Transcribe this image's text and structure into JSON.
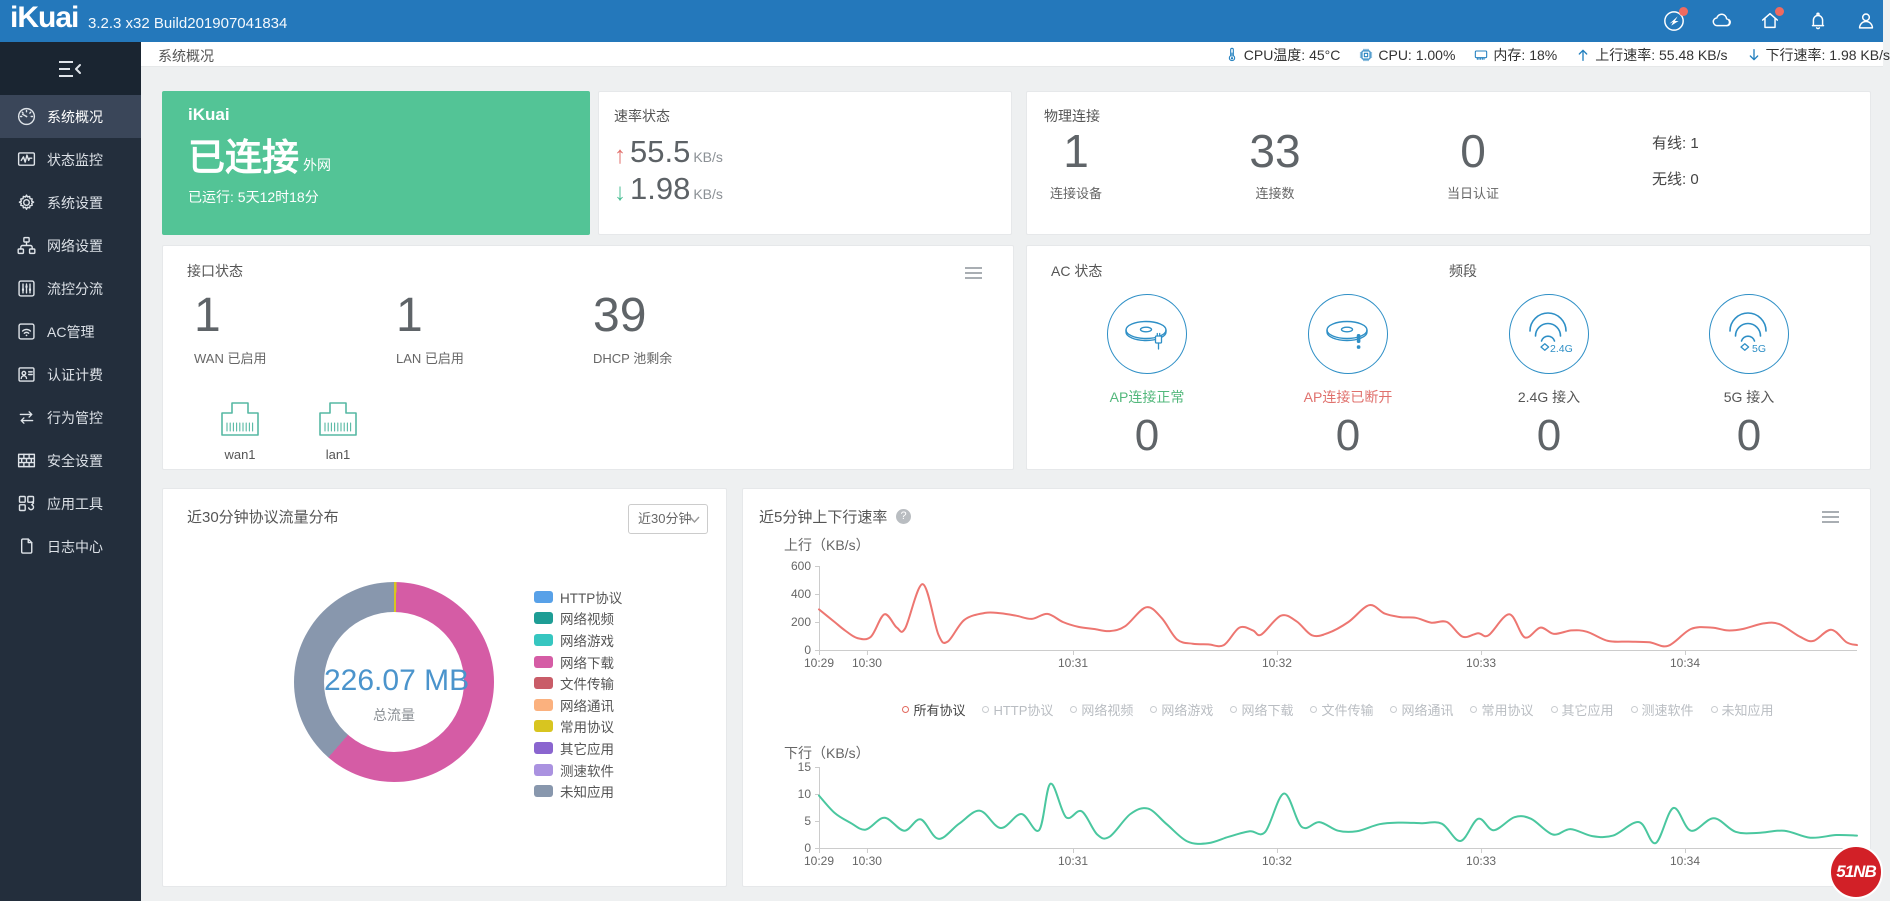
{
  "topbar": {
    "logo": "iKuai",
    "version": "3.2.3 x32 Build201907041834",
    "icons": [
      {
        "icon": "wing-circle",
        "badge": true
      },
      {
        "icon": "cloud",
        "badge": false
      },
      {
        "icon": "home",
        "badge": true
      },
      {
        "icon": "bell",
        "badge": false
      },
      {
        "icon": "user",
        "badge": false
      }
    ]
  },
  "sidebar": {
    "items": [
      {
        "icon": "dashboard",
        "key": "system-overview",
        "label": "系统概况",
        "active": true
      },
      {
        "icon": "monitor",
        "key": "status-monitor",
        "label": "状态监控",
        "active": false
      },
      {
        "icon": "gear",
        "key": "system-settings",
        "label": "系统设置",
        "active": false
      },
      {
        "icon": "network",
        "key": "network-settings",
        "label": "网络设置",
        "active": false
      },
      {
        "icon": "sliders",
        "key": "flow-control",
        "label": "流控分流",
        "active": false
      },
      {
        "icon": "wifi-box",
        "key": "ac-management",
        "label": "AC管理",
        "active": false
      },
      {
        "icon": "id-card",
        "key": "auth-billing",
        "label": "认证计费",
        "active": false
      },
      {
        "icon": "swap",
        "key": "behavior-control",
        "label": "行为管控",
        "active": false
      },
      {
        "icon": "wall",
        "key": "security-settings",
        "label": "安全设置",
        "active": false
      },
      {
        "icon": "apps",
        "key": "app-tools",
        "label": "应用工具",
        "active": false
      },
      {
        "icon": "logs",
        "key": "log-center",
        "label": "日志中心",
        "active": false
      }
    ]
  },
  "breadcrumb": {
    "title": "系统概况"
  },
  "statusbar": {
    "items": [
      {
        "icon": "thermometer",
        "label": "CPU温度: 45°C"
      },
      {
        "icon": "chip",
        "label": "CPU: 1.00%"
      },
      {
        "icon": "memory",
        "label": "内存: 18%"
      },
      {
        "icon": "arrow-up",
        "label": "上行速率: 55.48 KB/s"
      },
      {
        "icon": "arrow-down",
        "label": "下行速率: 1.98 KB/s"
      }
    ]
  },
  "connection_card": {
    "brand": "iKuai",
    "status": "已连接",
    "status_suffix": "外网",
    "uptime": "已运行: 5天12时18分"
  },
  "speed_card": {
    "title": "速率状态",
    "up_value": "55.5",
    "up_unit": "KB/s",
    "down_value": "1.98",
    "down_unit": "KB/s"
  },
  "physical_card": {
    "title": "物理连接",
    "stats": [
      {
        "value": "1",
        "label": "连接设备"
      },
      {
        "value": "33",
        "label": "连接数"
      },
      {
        "value": "0",
        "label": "当日认证"
      }
    ],
    "side": [
      {
        "label": "有线: 1"
      },
      {
        "label": "无线: 0"
      }
    ]
  },
  "interface_card": {
    "title": "接口状态",
    "stats": [
      {
        "value": "1",
        "label": "WAN 已启用"
      },
      {
        "value": "1",
        "label": "LAN 已启用"
      },
      {
        "value": "39",
        "label": "DHCP 池剩余"
      }
    ],
    "ports": [
      {
        "name": "wan1"
      },
      {
        "name": "lan1"
      }
    ]
  },
  "ac_card": {
    "title": "AC 状态",
    "band_title": "频段",
    "items": [
      {
        "icon": "ap-ok",
        "label": "AP连接正常",
        "color": "#53b87c",
        "value": "0"
      },
      {
        "icon": "ap-bad",
        "label": "AP连接已断开",
        "color": "#e0716d",
        "value": "0"
      },
      {
        "icon": "wifi-24",
        "label": "2.4G 接入",
        "color": "#555555",
        "value": "0"
      },
      {
        "icon": "wifi-5",
        "label": "5G 接入",
        "color": "#555555",
        "value": "0"
      }
    ]
  },
  "protocol_card": {
    "title": "近30分钟协议流量分布",
    "dropdown_value": "近30分钟"
  },
  "rate_card": {
    "title": "近5分钟上下行速率",
    "help": "?",
    "legend": [
      {
        "label": "所有协议",
        "active": true
      },
      {
        "label": "HTTP协议",
        "active": false
      },
      {
        "label": "网络视频",
        "active": false
      },
      {
        "label": "网络游戏",
        "active": false
      },
      {
        "label": "网络下载",
        "active": false
      },
      {
        "label": "文件传输",
        "active": false
      },
      {
        "label": "网络通讯",
        "active": false
      },
      {
        "label": "常用协议",
        "active": false
      },
      {
        "label": "其它应用",
        "active": false
      },
      {
        "label": "测速软件",
        "active": false
      },
      {
        "label": "未知应用",
        "active": false
      }
    ]
  },
  "badge": {
    "text": "51NB"
  },
  "chart_data": [
    {
      "type": "pie",
      "title": "近30分钟协议流量分布",
      "total": "226.07 MB",
      "total_label": "总流量",
      "legend_position": "right",
      "legend": [
        {
          "name": "HTTP协议",
          "color": "#58a1e8"
        },
        {
          "name": "网络视频",
          "color": "#1e9d95"
        },
        {
          "name": "网络游戏",
          "color": "#36c6c0"
        },
        {
          "name": "网络下载",
          "color": "#d55ca5"
        },
        {
          "name": "文件传输",
          "color": "#c95c68"
        },
        {
          "name": "网络通讯",
          "color": "#fbb17e"
        },
        {
          "name": "常用协议",
          "color": "#d8c520"
        },
        {
          "name": "其它应用",
          "color": "#8a65cf"
        },
        {
          "name": "测速软件",
          "color": "#aa92e0"
        },
        {
          "name": "未知应用",
          "color": "#8897ad"
        }
      ],
      "slices": [
        {
          "name": "常用协议",
          "percent": 0.4
        },
        {
          "name": "网络下载",
          "percent": 61.0
        },
        {
          "name": "未知应用",
          "percent": 38.6
        }
      ]
    },
    {
      "type": "line",
      "name": "上行",
      "ylabel": "上行（KB/s）",
      "color": "#ed7671",
      "ylim": [
        0,
        600
      ],
      "yticks": [
        0,
        200,
        400,
        600
      ],
      "xticks": [
        {
          "label": "10:29",
          "pos": 0
        },
        {
          "label": "10:30",
          "pos": 4.62
        },
        {
          "label": "10:31",
          "pos": 24.47
        },
        {
          "label": "10:32",
          "pos": 44.12
        },
        {
          "label": "10:33",
          "pos": 63.78
        },
        {
          "label": "10:34",
          "pos": 83.43
        }
      ],
      "points": [
        [
          0,
          290
        ],
        [
          1.5,
          200
        ],
        [
          2.5,
          140
        ],
        [
          3.7,
          85
        ],
        [
          5,
          95
        ],
        [
          6.3,
          255
        ],
        [
          7.5,
          160
        ],
        [
          8.3,
          155
        ],
        [
          10,
          470
        ],
        [
          11.5,
          110
        ],
        [
          12.4,
          60
        ],
        [
          14,
          215
        ],
        [
          16,
          265
        ],
        [
          17.5,
          262
        ],
        [
          19,
          245
        ],
        [
          20.5,
          222
        ],
        [
          22,
          258
        ],
        [
          23.5,
          200
        ],
        [
          25,
          165
        ],
        [
          26.5,
          150
        ],
        [
          28,
          135
        ],
        [
          29.5,
          170
        ],
        [
          31.5,
          305
        ],
        [
          33,
          230
        ],
        [
          34.5,
          75
        ],
        [
          36,
          45
        ],
        [
          37.5,
          40
        ],
        [
          39,
          35
        ],
        [
          40.5,
          160
        ],
        [
          41.8,
          140
        ],
        [
          42.6,
          110
        ],
        [
          44.5,
          245
        ],
        [
          46,
          205
        ],
        [
          47.5,
          105
        ],
        [
          49,
          120
        ],
        [
          51,
          200
        ],
        [
          53,
          320
        ],
        [
          54.5,
          260
        ],
        [
          56,
          235
        ],
        [
          57.5,
          230
        ],
        [
          59,
          195
        ],
        [
          60.5,
          200
        ],
        [
          62,
          95
        ],
        [
          63.5,
          120
        ],
        [
          64.5,
          105
        ],
        [
          66.5,
          255
        ],
        [
          68,
          90
        ],
        [
          69.5,
          160
        ],
        [
          70.8,
          115
        ],
        [
          72.5,
          140
        ],
        [
          74,
          130
        ],
        [
          76,
          65
        ],
        [
          78,
          60
        ],
        [
          80,
          55
        ],
        [
          81.8,
          30
        ],
        [
          84,
          150
        ],
        [
          86,
          160
        ],
        [
          87.5,
          140
        ],
        [
          89,
          150
        ],
        [
          91,
          190
        ],
        [
          92.5,
          185
        ],
        [
          94.5,
          95
        ],
        [
          95.8,
          65
        ],
        [
          97.5,
          145
        ],
        [
          99,
          55
        ],
        [
          100,
          35
        ]
      ]
    },
    {
      "type": "line",
      "name": "下行",
      "ylabel": "下行（KB/s）",
      "color": "#4ac79f",
      "ylim": [
        0,
        15
      ],
      "yticks": [
        0,
        5,
        10,
        15
      ],
      "xticks": [
        {
          "label": "10:29",
          "pos": 0
        },
        {
          "label": "10:30",
          "pos": 4.62
        },
        {
          "label": "10:31",
          "pos": 24.47
        },
        {
          "label": "10:32",
          "pos": 44.12
        },
        {
          "label": "10:33",
          "pos": 63.78
        },
        {
          "label": "10:34",
          "pos": 83.43
        }
      ],
      "points": [
        [
          0,
          9.7
        ],
        [
          1.5,
          6.5
        ],
        [
          3,
          4.7
        ],
        [
          4.5,
          3.4
        ],
        [
          6.3,
          5.6
        ],
        [
          8.2,
          3.2
        ],
        [
          9.8,
          5.3
        ],
        [
          11.5,
          1.7
        ],
        [
          13.5,
          4.5
        ],
        [
          15.5,
          6.9
        ],
        [
          17.5,
          3.7
        ],
        [
          19.5,
          6.3
        ],
        [
          21.2,
          3.3
        ],
        [
          22.3,
          11.9
        ],
        [
          23.8,
          5.7
        ],
        [
          25.3,
          6.8
        ],
        [
          26.8,
          2.5
        ],
        [
          28,
          2.1
        ],
        [
          30,
          6.3
        ],
        [
          31.7,
          7.3
        ],
        [
          33.5,
          4.4
        ],
        [
          35.5,
          1.2
        ],
        [
          37.5,
          0.9
        ],
        [
          39.5,
          2.1
        ],
        [
          41.5,
          3.1
        ],
        [
          43,
          3.0
        ],
        [
          44.8,
          10.1
        ],
        [
          46.5,
          3.9
        ],
        [
          48.2,
          4.8
        ],
        [
          50,
          3.2
        ],
        [
          51.8,
          3.1
        ],
        [
          54,
          4.4
        ],
        [
          56,
          4.7
        ],
        [
          58,
          4.6
        ],
        [
          60,
          4.5
        ],
        [
          61.8,
          1.3
        ],
        [
          63.5,
          5.4
        ],
        [
          65,
          3.3
        ],
        [
          67,
          5.7
        ],
        [
          68.6,
          5.4
        ],
        [
          70.7,
          2.5
        ],
        [
          72.4,
          3.5
        ],
        [
          74.5,
          2.2
        ],
        [
          76.5,
          2.3
        ],
        [
          79,
          4.8
        ],
        [
          80.6,
          0.9
        ],
        [
          82.3,
          7.4
        ],
        [
          84,
          3.2
        ],
        [
          86.2,
          5.5
        ],
        [
          88.3,
          3.0
        ],
        [
          90.5,
          2.8
        ],
        [
          93,
          3.2
        ],
        [
          95.5,
          1.9
        ],
        [
          98,
          2.4
        ],
        [
          100,
          2.3
        ]
      ]
    }
  ]
}
